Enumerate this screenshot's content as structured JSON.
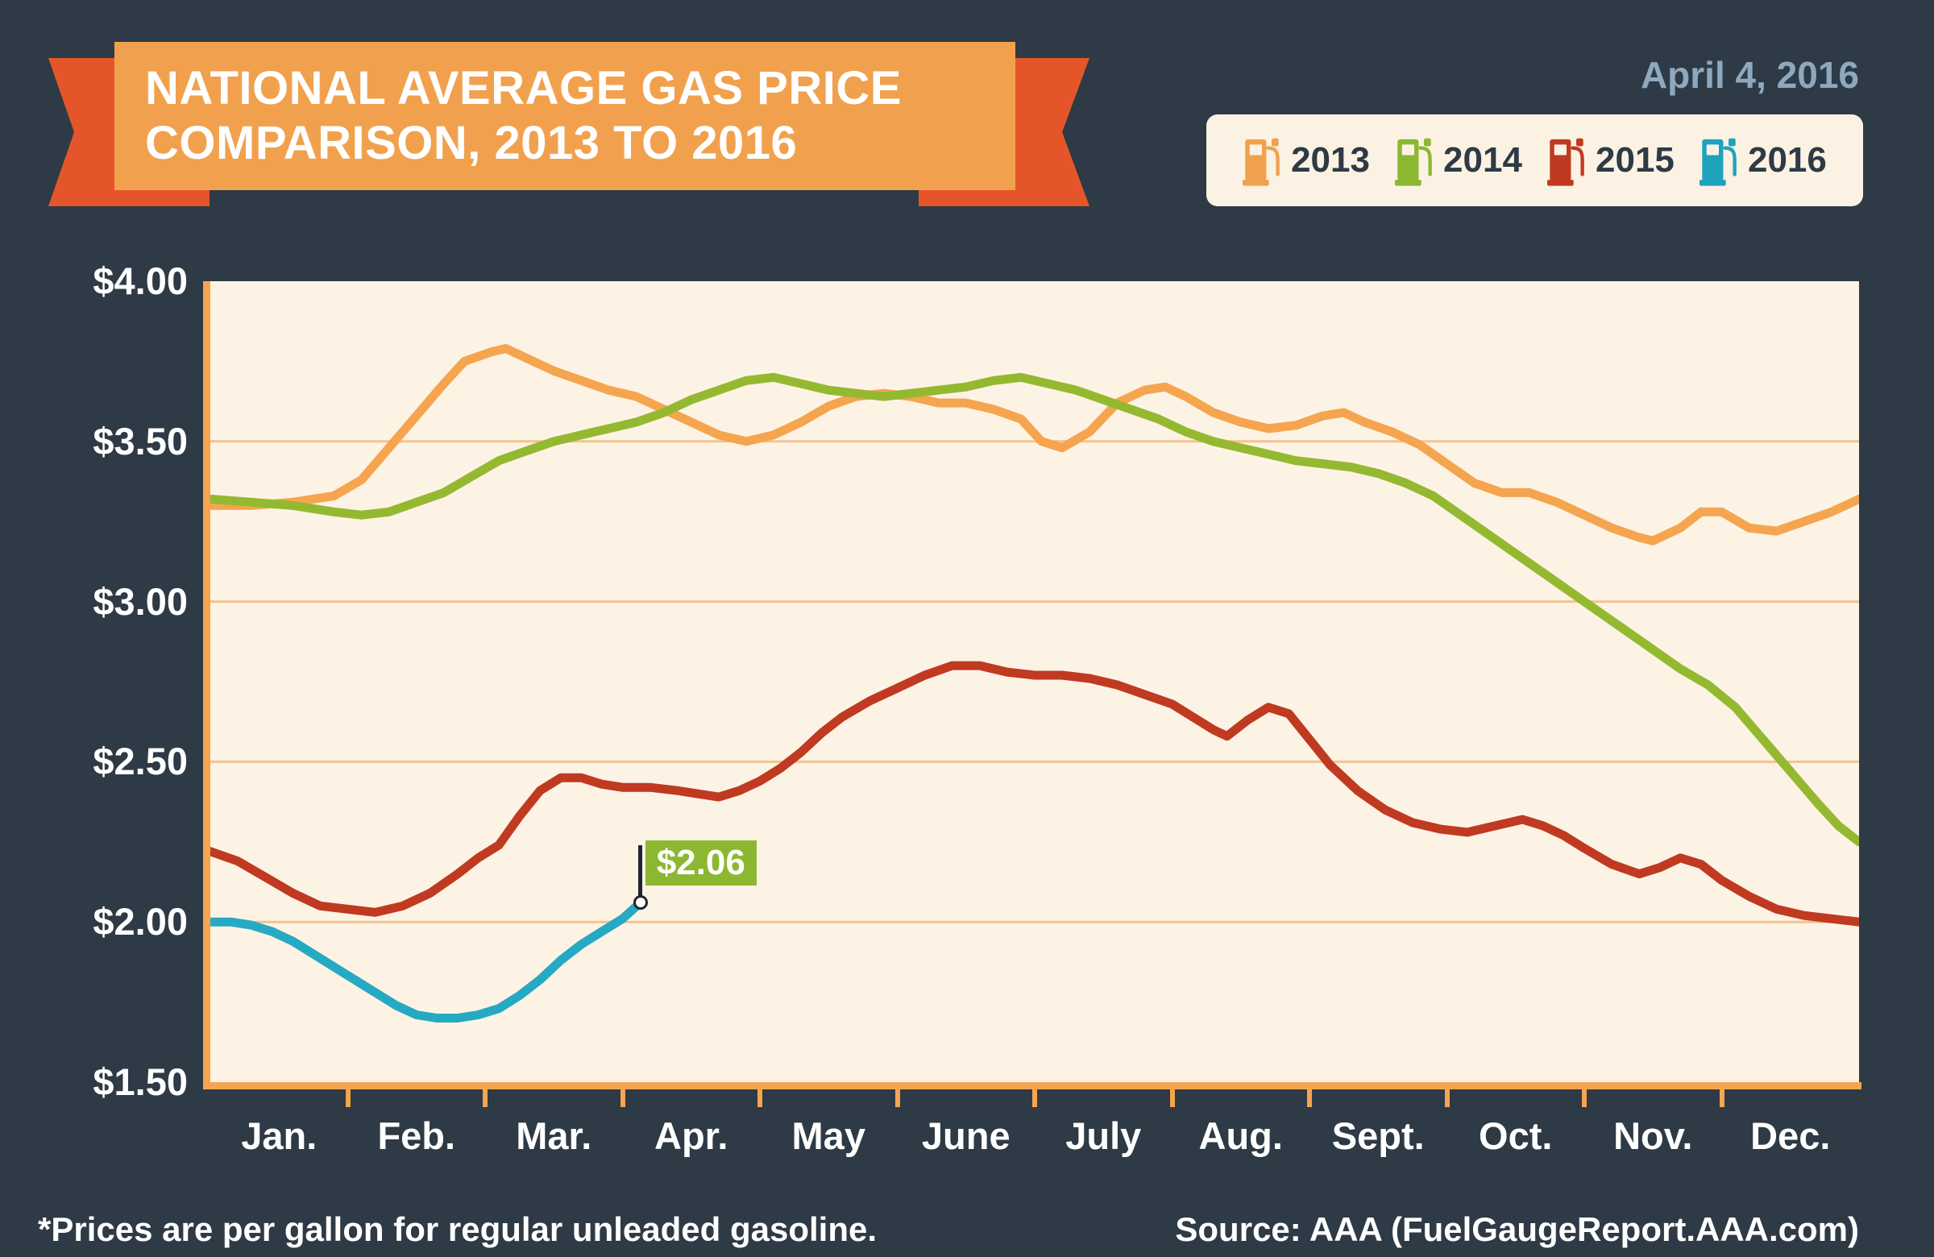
{
  "header": {
    "title_line1": "NATIONAL AVERAGE GAS PRICE",
    "title_line2": "COMPARISON, 2013 TO 2016",
    "date": "April 4, 2016"
  },
  "legend": {
    "items": [
      {
        "label": "2013",
        "color": "#f0a14e",
        "icon": "gas-pump-icon"
      },
      {
        "label": "2014",
        "color": "#8cb831",
        "icon": "gas-pump-icon"
      },
      {
        "label": "2015",
        "color": "#bf3a21",
        "icon": "gas-pump-icon"
      },
      {
        "label": "2016",
        "color": "#1fa3bd",
        "icon": "gas-pump-icon"
      }
    ]
  },
  "footer": {
    "note": "*Prices are per gallon for regular unleaded gasoline.",
    "source": "Source: AAA (FuelGaugeReport.AAA.com)"
  },
  "chart_data": {
    "type": "line",
    "title": "National Average Gas Price Comparison, 2013 to 2016",
    "x_unit": "month (0 = Jan 1, 12 = Dec 31)",
    "ylabel": "price per gallon (USD)",
    "ylim": [
      1.5,
      4.0
    ],
    "y_ticks": [
      "$4.00",
      "$3.50",
      "$3.00",
      "$2.50",
      "$2.00",
      "$1.50"
    ],
    "y_tick_values": [
      4.0,
      3.5,
      3.0,
      2.5,
      2.0,
      1.5
    ],
    "categories": [
      "Jan.",
      "Feb.",
      "Mar.",
      "Apr.",
      "May",
      "June",
      "July",
      "Aug.",
      "Sept.",
      "Oct.",
      "Nov.",
      "Dec."
    ],
    "grid": true,
    "legend_position": "top-right",
    "annotation": {
      "series": "2016",
      "x_month": 3.13,
      "value": 2.06,
      "label": "$2.06"
    },
    "series": [
      {
        "name": "2013",
        "color": "#f5a54f",
        "points": [
          [
            0.0,
            3.3
          ],
          [
            0.3,
            3.3
          ],
          [
            0.6,
            3.31
          ],
          [
            0.9,
            3.33
          ],
          [
            1.1,
            3.38
          ],
          [
            1.3,
            3.48
          ],
          [
            1.5,
            3.58
          ],
          [
            1.7,
            3.68
          ],
          [
            1.85,
            3.75
          ],
          [
            2.05,
            3.78
          ],
          [
            2.15,
            3.79
          ],
          [
            2.3,
            3.76
          ],
          [
            2.5,
            3.72
          ],
          [
            2.7,
            3.69
          ],
          [
            2.9,
            3.66
          ],
          [
            3.1,
            3.64
          ],
          [
            3.3,
            3.6
          ],
          [
            3.5,
            3.56
          ],
          [
            3.7,
            3.52
          ],
          [
            3.9,
            3.5
          ],
          [
            4.1,
            3.52
          ],
          [
            4.3,
            3.56
          ],
          [
            4.5,
            3.61
          ],
          [
            4.7,
            3.64
          ],
          [
            4.9,
            3.65
          ],
          [
            5.1,
            3.64
          ],
          [
            5.3,
            3.62
          ],
          [
            5.5,
            3.62
          ],
          [
            5.7,
            3.6
          ],
          [
            5.9,
            3.57
          ],
          [
            6.05,
            3.5
          ],
          [
            6.2,
            3.48
          ],
          [
            6.4,
            3.53
          ],
          [
            6.6,
            3.62
          ],
          [
            6.8,
            3.66
          ],
          [
            6.95,
            3.67
          ],
          [
            7.1,
            3.64
          ],
          [
            7.3,
            3.59
          ],
          [
            7.5,
            3.56
          ],
          [
            7.7,
            3.54
          ],
          [
            7.9,
            3.55
          ],
          [
            8.1,
            3.58
          ],
          [
            8.25,
            3.59
          ],
          [
            8.4,
            3.56
          ],
          [
            8.6,
            3.53
          ],
          [
            8.8,
            3.49
          ],
          [
            9.0,
            3.43
          ],
          [
            9.2,
            3.37
          ],
          [
            9.4,
            3.34
          ],
          [
            9.6,
            3.34
          ],
          [
            9.8,
            3.31
          ],
          [
            10.0,
            3.27
          ],
          [
            10.2,
            3.23
          ],
          [
            10.4,
            3.2
          ],
          [
            10.5,
            3.19
          ],
          [
            10.7,
            3.23
          ],
          [
            10.85,
            3.28
          ],
          [
            11.0,
            3.28
          ],
          [
            11.2,
            3.23
          ],
          [
            11.4,
            3.22
          ],
          [
            11.6,
            3.25
          ],
          [
            11.8,
            3.28
          ],
          [
            12.0,
            3.32
          ]
        ]
      },
      {
        "name": "2014",
        "color": "#94b931",
        "points": [
          [
            0.0,
            3.32
          ],
          [
            0.3,
            3.31
          ],
          [
            0.6,
            3.3
          ],
          [
            0.9,
            3.28
          ],
          [
            1.1,
            3.27
          ],
          [
            1.3,
            3.28
          ],
          [
            1.5,
            3.31
          ],
          [
            1.7,
            3.34
          ],
          [
            1.9,
            3.39
          ],
          [
            2.1,
            3.44
          ],
          [
            2.3,
            3.47
          ],
          [
            2.5,
            3.5
          ],
          [
            2.7,
            3.52
          ],
          [
            2.9,
            3.54
          ],
          [
            3.1,
            3.56
          ],
          [
            3.3,
            3.59
          ],
          [
            3.5,
            3.63
          ],
          [
            3.7,
            3.66
          ],
          [
            3.9,
            3.69
          ],
          [
            4.1,
            3.7
          ],
          [
            4.3,
            3.68
          ],
          [
            4.5,
            3.66
          ],
          [
            4.7,
            3.65
          ],
          [
            4.9,
            3.64
          ],
          [
            5.1,
            3.65
          ],
          [
            5.3,
            3.66
          ],
          [
            5.5,
            3.67
          ],
          [
            5.7,
            3.69
          ],
          [
            5.9,
            3.7
          ],
          [
            6.1,
            3.68
          ],
          [
            6.3,
            3.66
          ],
          [
            6.5,
            3.63
          ],
          [
            6.7,
            3.6
          ],
          [
            6.9,
            3.57
          ],
          [
            7.1,
            3.53
          ],
          [
            7.3,
            3.5
          ],
          [
            7.5,
            3.48
          ],
          [
            7.7,
            3.46
          ],
          [
            7.9,
            3.44
          ],
          [
            8.1,
            3.43
          ],
          [
            8.3,
            3.42
          ],
          [
            8.5,
            3.4
          ],
          [
            8.7,
            3.37
          ],
          [
            8.9,
            3.33
          ],
          [
            9.1,
            3.27
          ],
          [
            9.3,
            3.21
          ],
          [
            9.5,
            3.15
          ],
          [
            9.7,
            3.09
          ],
          [
            9.9,
            3.03
          ],
          [
            10.1,
            2.97
          ],
          [
            10.3,
            2.91
          ],
          [
            10.5,
            2.85
          ],
          [
            10.7,
            2.79
          ],
          [
            10.9,
            2.74
          ],
          [
            11.1,
            2.67
          ],
          [
            11.3,
            2.57
          ],
          [
            11.5,
            2.47
          ],
          [
            11.7,
            2.37
          ],
          [
            11.85,
            2.3
          ],
          [
            12.0,
            2.25
          ]
        ]
      },
      {
        "name": "2015",
        "color": "#bf3a21",
        "points": [
          [
            0.0,
            2.22
          ],
          [
            0.2,
            2.19
          ],
          [
            0.4,
            2.14
          ],
          [
            0.6,
            2.09
          ],
          [
            0.8,
            2.05
          ],
          [
            1.0,
            2.04
          ],
          [
            1.2,
            2.03
          ],
          [
            1.4,
            2.05
          ],
          [
            1.6,
            2.09
          ],
          [
            1.8,
            2.15
          ],
          [
            1.95,
            2.2
          ],
          [
            2.1,
            2.24
          ],
          [
            2.25,
            2.33
          ],
          [
            2.4,
            2.41
          ],
          [
            2.55,
            2.45
          ],
          [
            2.7,
            2.45
          ],
          [
            2.85,
            2.43
          ],
          [
            3.0,
            2.42
          ],
          [
            3.2,
            2.42
          ],
          [
            3.4,
            2.41
          ],
          [
            3.55,
            2.4
          ],
          [
            3.7,
            2.39
          ],
          [
            3.85,
            2.41
          ],
          [
            4.0,
            2.44
          ],
          [
            4.15,
            2.48
          ],
          [
            4.3,
            2.53
          ],
          [
            4.45,
            2.59
          ],
          [
            4.6,
            2.64
          ],
          [
            4.8,
            2.69
          ],
          [
            5.0,
            2.73
          ],
          [
            5.2,
            2.77
          ],
          [
            5.4,
            2.8
          ],
          [
            5.6,
            2.8
          ],
          [
            5.8,
            2.78
          ],
          [
            6.0,
            2.77
          ],
          [
            6.2,
            2.77
          ],
          [
            6.4,
            2.76
          ],
          [
            6.6,
            2.74
          ],
          [
            6.8,
            2.71
          ],
          [
            7.0,
            2.68
          ],
          [
            7.15,
            2.64
          ],
          [
            7.3,
            2.6
          ],
          [
            7.4,
            2.58
          ],
          [
            7.55,
            2.63
          ],
          [
            7.7,
            2.67
          ],
          [
            7.85,
            2.65
          ],
          [
            8.0,
            2.57
          ],
          [
            8.15,
            2.49
          ],
          [
            8.35,
            2.41
          ],
          [
            8.55,
            2.35
          ],
          [
            8.75,
            2.31
          ],
          [
            8.95,
            2.29
          ],
          [
            9.15,
            2.28
          ],
          [
            9.35,
            2.3
          ],
          [
            9.55,
            2.32
          ],
          [
            9.7,
            2.3
          ],
          [
            9.85,
            2.27
          ],
          [
            10.0,
            2.23
          ],
          [
            10.2,
            2.18
          ],
          [
            10.4,
            2.15
          ],
          [
            10.55,
            2.17
          ],
          [
            10.7,
            2.2
          ],
          [
            10.85,
            2.18
          ],
          [
            11.0,
            2.13
          ],
          [
            11.2,
            2.08
          ],
          [
            11.4,
            2.04
          ],
          [
            11.6,
            2.02
          ],
          [
            11.8,
            2.01
          ],
          [
            12.0,
            2.0
          ]
        ]
      },
      {
        "name": "2016",
        "color": "#26a9c2",
        "points": [
          [
            0.0,
            2.0
          ],
          [
            0.15,
            2.0
          ],
          [
            0.3,
            1.99
          ],
          [
            0.45,
            1.97
          ],
          [
            0.6,
            1.94
          ],
          [
            0.75,
            1.9
          ],
          [
            0.9,
            1.86
          ],
          [
            1.05,
            1.82
          ],
          [
            1.2,
            1.78
          ],
          [
            1.35,
            1.74
          ],
          [
            1.5,
            1.71
          ],
          [
            1.65,
            1.7
          ],
          [
            1.8,
            1.7
          ],
          [
            1.95,
            1.71
          ],
          [
            2.1,
            1.73
          ],
          [
            2.25,
            1.77
          ],
          [
            2.4,
            1.82
          ],
          [
            2.55,
            1.88
          ],
          [
            2.7,
            1.93
          ],
          [
            2.85,
            1.97
          ],
          [
            3.0,
            2.01
          ],
          [
            3.13,
            2.06
          ]
        ]
      }
    ]
  }
}
